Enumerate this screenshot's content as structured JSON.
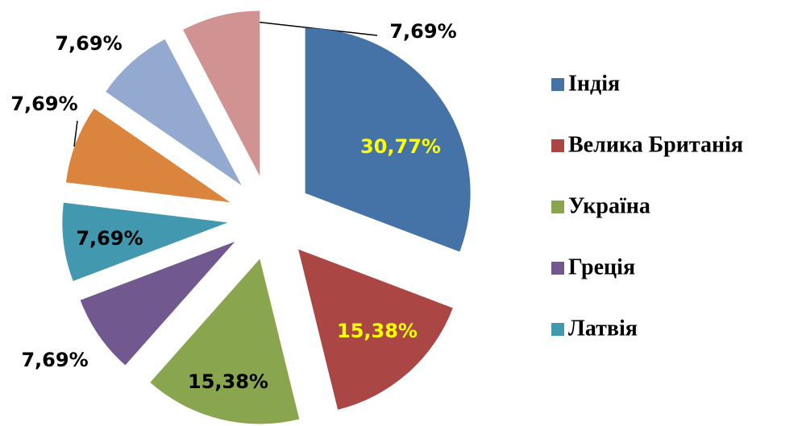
{
  "chart_data": {
    "type": "pie",
    "categories": [
      "Індія",
      "Велика Британія",
      "Україна",
      "Греція",
      "Латвія",
      null,
      null,
      null
    ],
    "values": [
      30.77,
      15.38,
      15.38,
      7.69,
      7.69,
      7.69,
      7.69,
      7.69
    ],
    "value_labels": [
      "30,77%",
      "15,38%",
      "15,38%",
      "7,69%",
      "7,69%",
      "7,69%",
      "7,69%",
      "7,69%"
    ],
    "colors": [
      "#4572a7",
      "#aa4643",
      "#89a54e",
      "#71588f",
      "#4198af",
      "#db843d",
      "#93a9cf",
      "#d19392"
    ],
    "label_colors": [
      "#ffff00",
      "#ffff00",
      "#000000",
      "#000000",
      "#000000",
      "#000000",
      "#000000",
      "#000000"
    ]
  }
}
